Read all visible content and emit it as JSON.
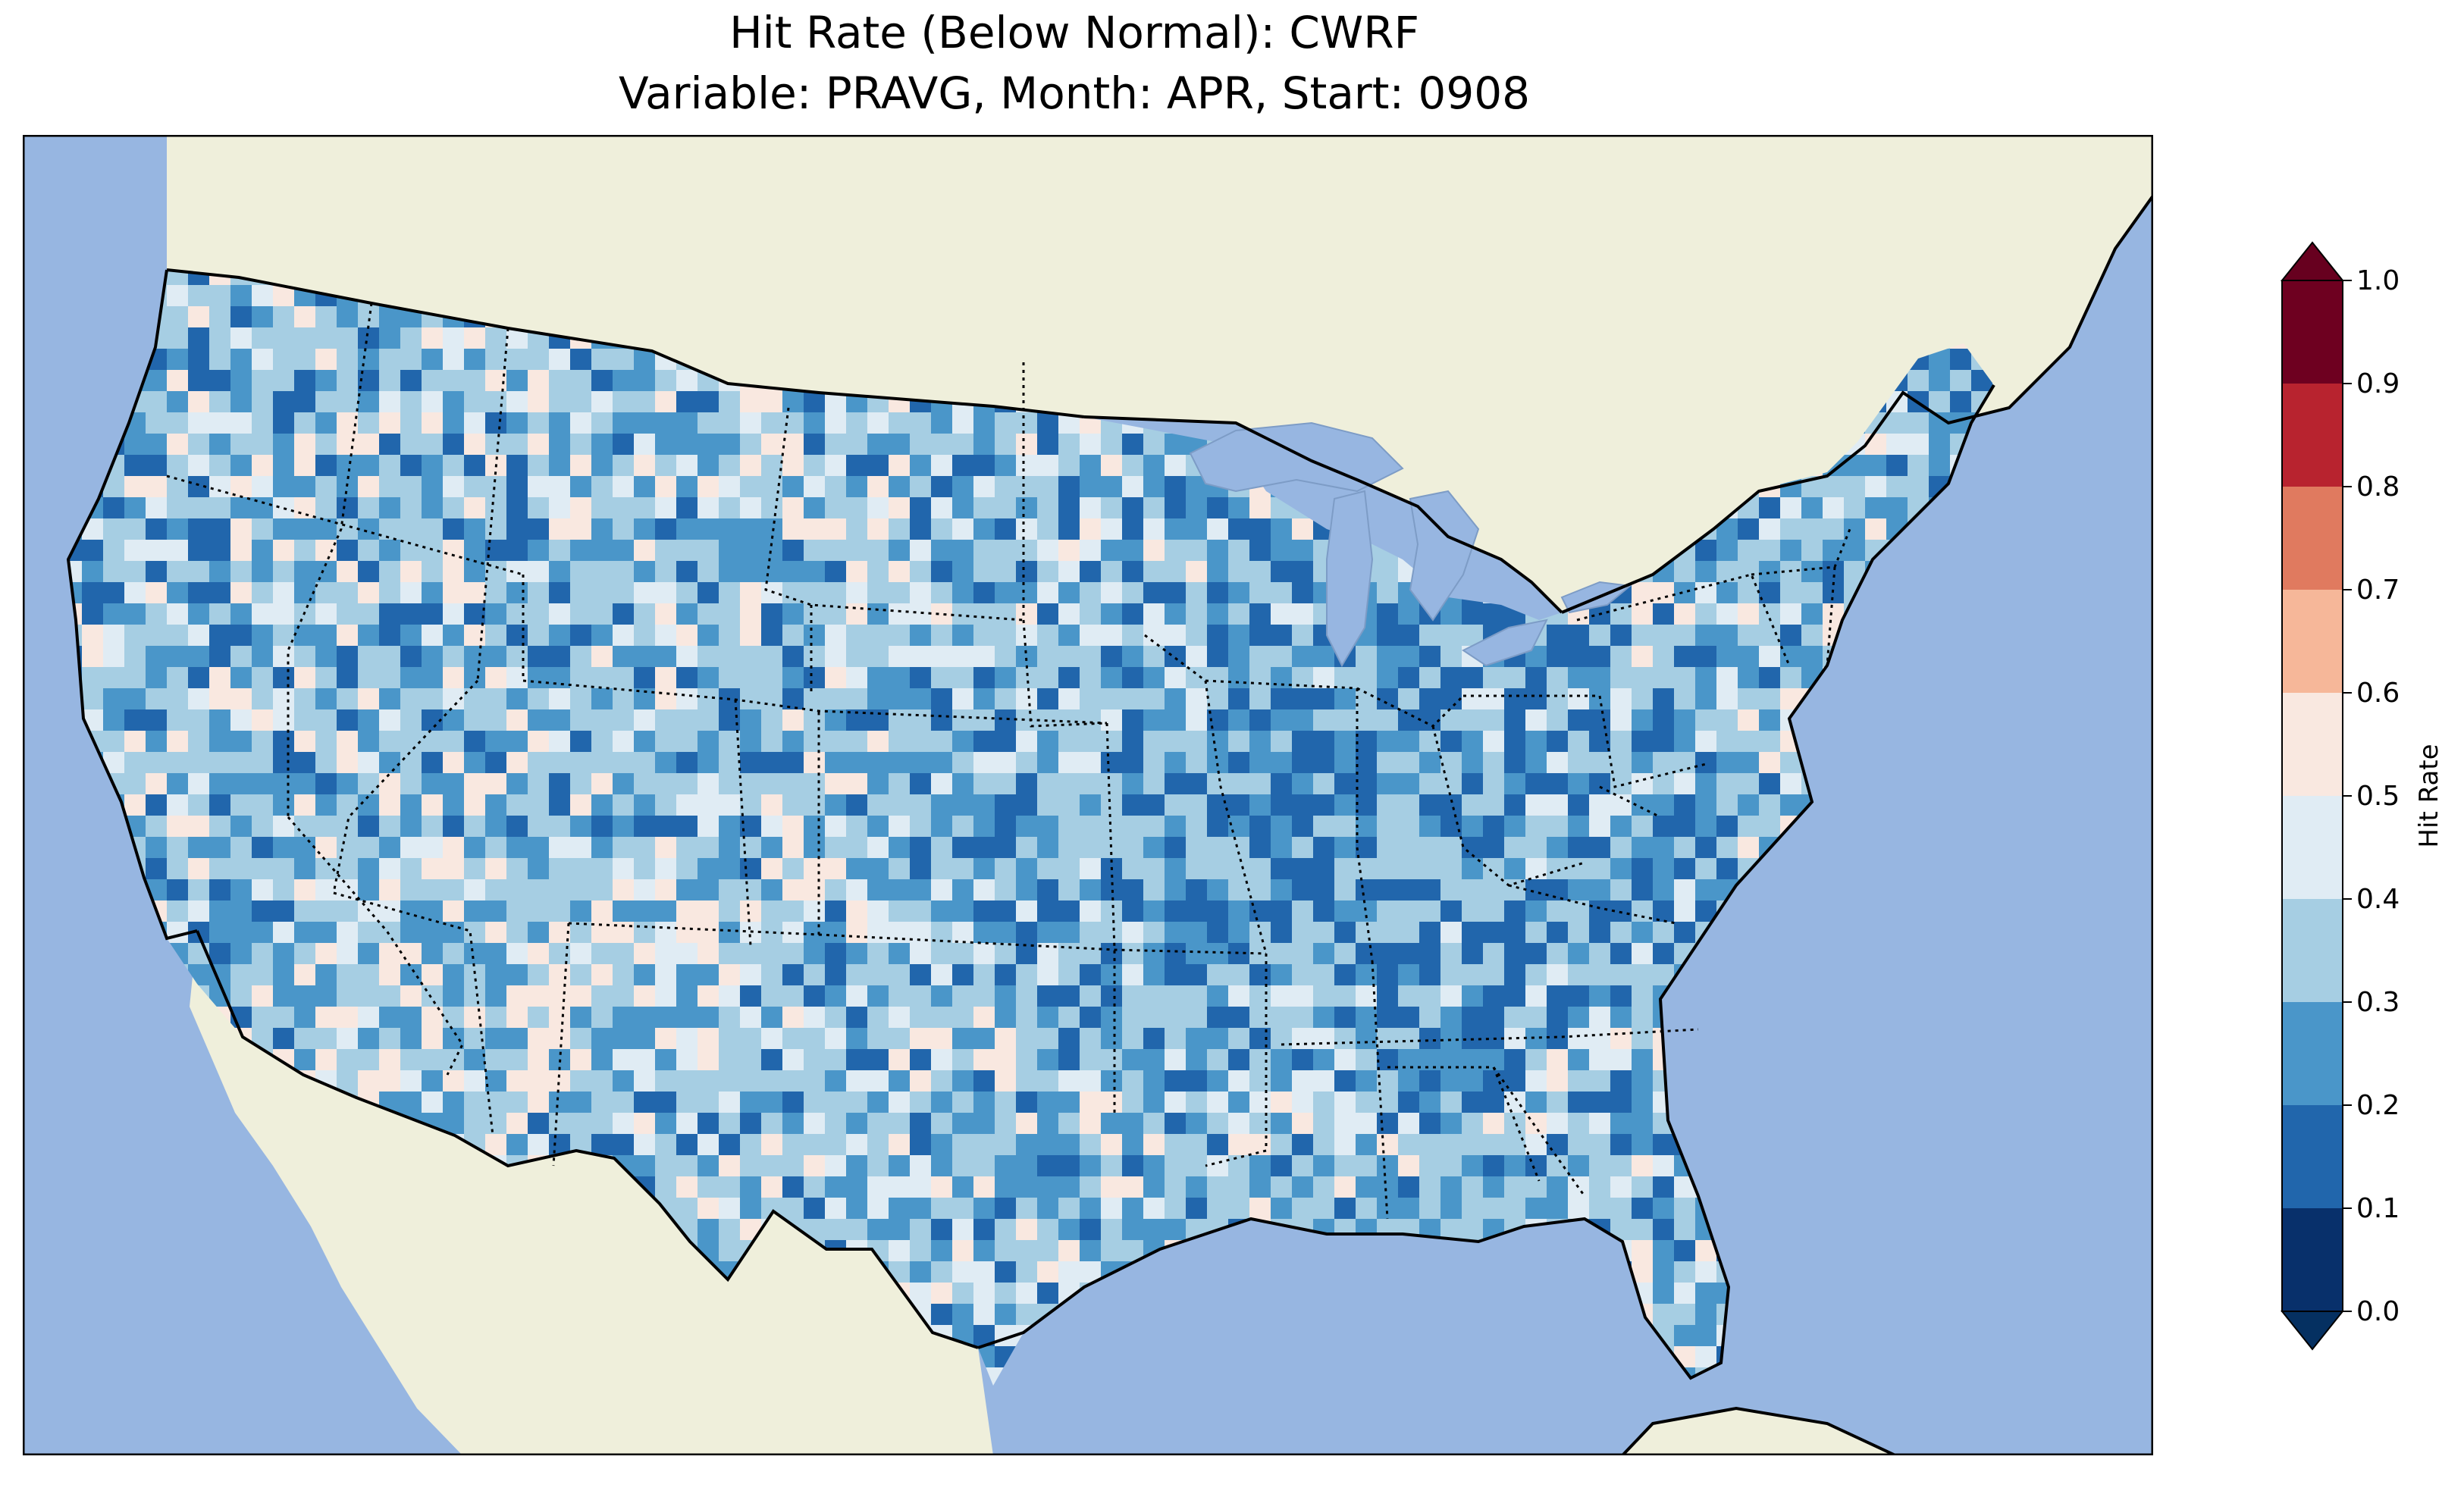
{
  "title": {
    "line1": "Hit Rate (Below Normal): CWRF",
    "line2": "Variable: PRAVG, Month: APR, Start: 0908"
  },
  "map": {
    "ocean_color": "#97b6e1",
    "land_color": "#efefdb",
    "lake_color": "#97b6e1",
    "border_color": "#000000"
  },
  "colorbar": {
    "label": "Hit Rate",
    "extend": "both",
    "ticks": [
      "0.0",
      "0.1",
      "0.2",
      "0.3",
      "0.4",
      "0.5",
      "0.6",
      "0.7",
      "0.8",
      "0.9",
      "1.0"
    ],
    "colors": [
      "#053061",
      "#2166ac",
      "#4393c3",
      "#92c5de",
      "#d1e5f0",
      "#f7f7f7",
      "#fddbc7",
      "#f4a582",
      "#d6604d",
      "#b2182b",
      "#67001f"
    ],
    "bin_colors": [
      "#08306b",
      "#2166ac",
      "#4a96c9",
      "#a6cee3",
      "#e0ecf4",
      "#f9e8e0",
      "#f6b799",
      "#e07a5f",
      "#b8232f",
      "#6e0020"
    ]
  }
}
